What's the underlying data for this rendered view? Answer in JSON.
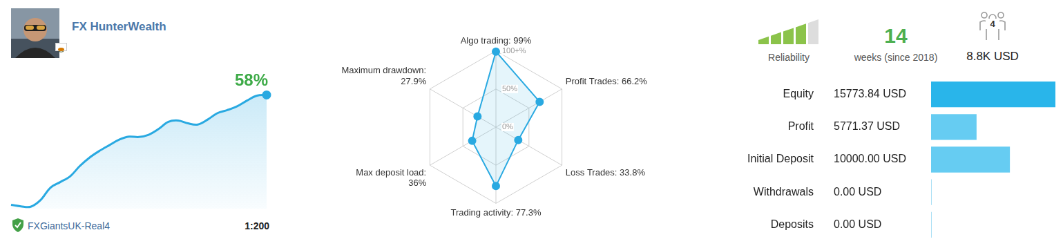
{
  "profile": {
    "name": "FX HunterWealth",
    "server": "FXGiantsUK-Real4",
    "leverage": "1:200"
  },
  "summary": {
    "reliability": {
      "label": "Reliability",
      "level": 4,
      "of": 5
    },
    "weeks": {
      "value": 14,
      "label": "weeks (since 2018)"
    },
    "subscribers": {
      "value": 4,
      "funds": "8.8K USD"
    }
  },
  "chart_data": [
    {
      "type": "area",
      "color": "#29a9e1",
      "categories": [
        null,
        null,
        null,
        null,
        null,
        null,
        null,
        null,
        null,
        null,
        null,
        null,
        null,
        null,
        null,
        null,
        null,
        null,
        null,
        null,
        null,
        null,
        null,
        null,
        null,
        null,
        null
      ],
      "values": [
        0,
        -0.8,
        -1,
        2.5,
        9,
        12,
        15,
        20.5,
        25,
        28.5,
        31.5,
        34.4,
        36,
        35.8,
        37,
        40,
        43.8,
        44.5,
        43,
        42.4,
        45,
        48.4,
        50,
        52,
        55,
        57.6,
        58
      ],
      "value_labels": [
        null,
        null,
        null,
        null,
        null,
        null,
        null,
        null,
        null,
        null,
        null,
        null,
        null,
        null,
        null,
        null,
        null,
        null,
        null,
        null,
        null,
        null,
        null,
        null,
        null,
        null,
        "58%"
      ],
      "ylim": [
        -2,
        68
      ],
      "grid": false,
      "tick_labels": false
    },
    {
      "type": "radar",
      "color": "#29a9e1",
      "marker": "circle",
      "categories": [
        "Algo trading: 99%",
        "Profit Trades: 66.2%",
        "Loss Trades: 33.8%",
        "Trading activity: 77.3%",
        "Max deposit load: 36%",
        "Maximum drawdown: 27.9%"
      ],
      "values": [
        99,
        66.2,
        33.8,
        77.3,
        36,
        27.9
      ],
      "ylim": [
        0,
        100
      ],
      "yticks": [
        {
          "value": 0,
          "label": "0%"
        },
        {
          "value": 50,
          "label": "50%"
        },
        {
          "value": 100,
          "label": "100+%"
        }
      ],
      "grid": true
    },
    {
      "type": "bar",
      "orientation": "horizontal",
      "categories": [
        "Equity",
        "Profit",
        "Initial Deposit",
        "Withdrawals",
        "Deposits"
      ],
      "values": [
        15773.84,
        5771.37,
        10000,
        0,
        0
      ],
      "value_labels": [
        "15773.84 USD",
        "5771.37 USD",
        "10000.00 USD",
        "0.00 USD",
        "0.00 USD"
      ],
      "colors": [
        "#29b5ea",
        "#66ccf2",
        "#66ccf2",
        "#a9dff5",
        "#a9dff5"
      ],
      "xlim": [
        0,
        15773.84
      ],
      "grid": false,
      "tick_labels": false
    }
  ]
}
